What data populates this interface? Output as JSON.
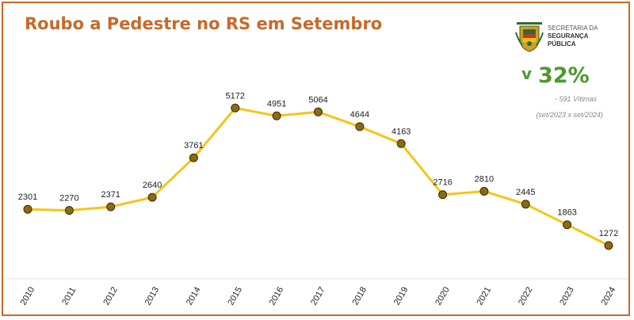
{
  "header": {
    "title": "Roubo a Pedestre no RS em Setembro"
  },
  "logo": {
    "line1": "SECRETARIA DA",
    "line2": "SEGURANÇA",
    "line3": "PÚBLICA",
    "icon": "rs-state-coat-of-arms-icon"
  },
  "kpi": {
    "arrow": "v",
    "value": "32%",
    "victims": "- 591 Vítimas",
    "period": "(set/2023 x set/2024)",
    "color": "#4c9a2a"
  },
  "colors": {
    "accent": "#c8692a",
    "line": "#f5c518",
    "marker_fill": "#8b6a14",
    "marker_stroke": "#3d2b00"
  },
  "chart_data": {
    "type": "line",
    "title": "Roubo a Pedestre no RS em Setembro",
    "categories": [
      "2010",
      "2011",
      "2012",
      "2013",
      "2014",
      "2015",
      "2016",
      "2017",
      "2018",
      "2019",
      "2020",
      "2021",
      "2022",
      "2023",
      "2024"
    ],
    "series": [
      {
        "values": [
          2301,
          2270,
          2371,
          2640,
          3761,
          5172,
          4951,
          5064,
          4644,
          4163,
          2716,
          2810,
          2445,
          1863,
          1272
        ]
      }
    ],
    "data_labels": true,
    "grid": false,
    "legend": "none"
  }
}
